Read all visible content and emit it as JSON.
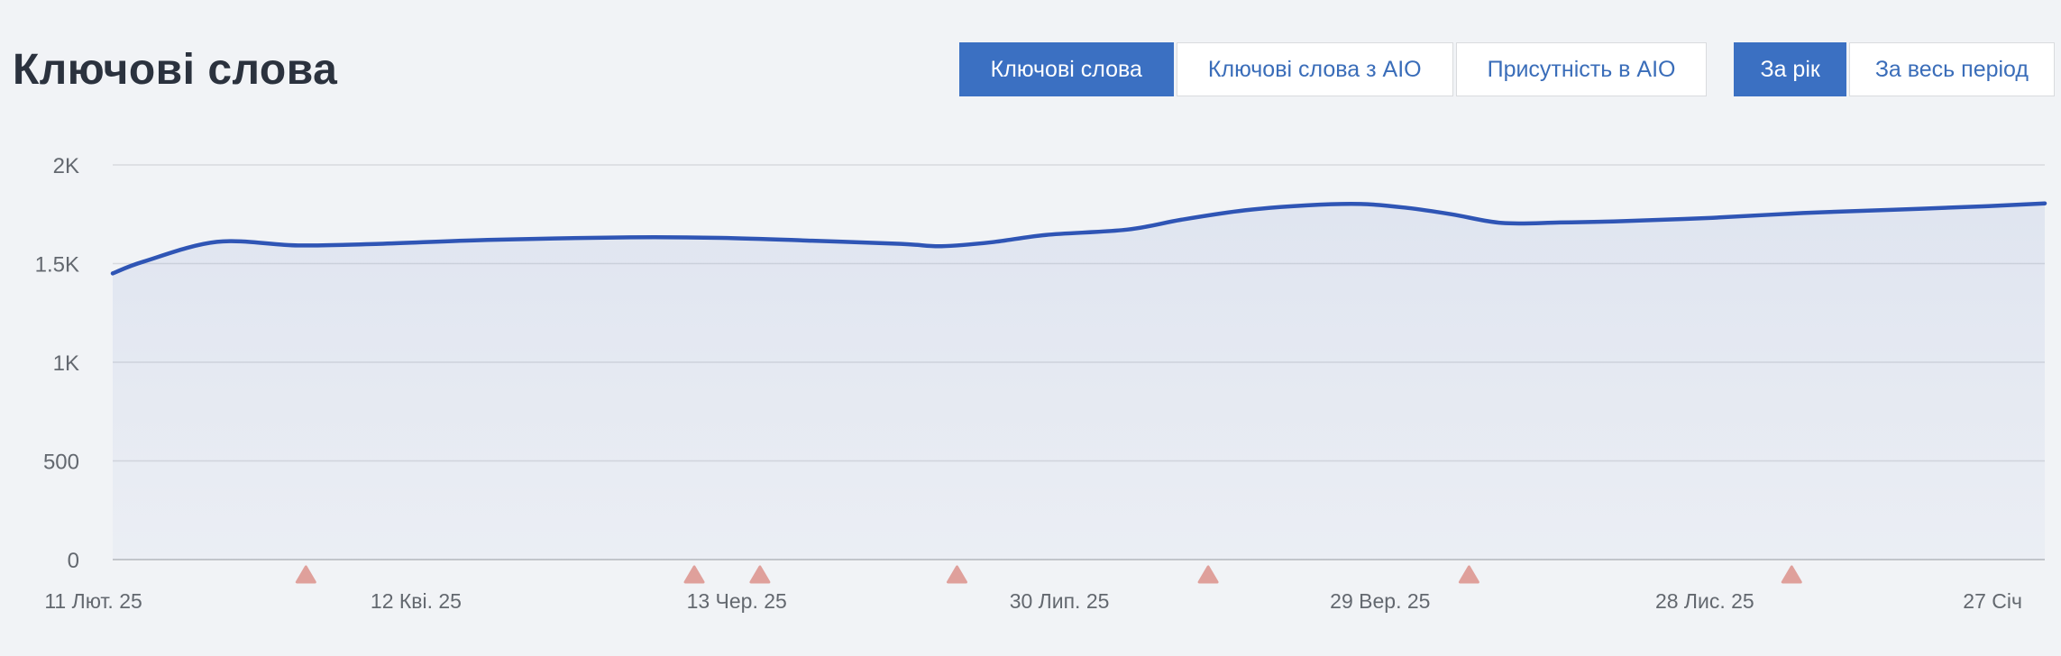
{
  "header": {
    "title": "Ключові слова",
    "tabs": [
      {
        "label": "Ключові слова",
        "active": true
      },
      {
        "label": "Ключові слова з AIO",
        "active": false
      },
      {
        "label": "Присутність в AIO",
        "active": false
      }
    ],
    "period_buttons": [
      {
        "label": "За рік",
        "active": true
      },
      {
        "label": "За весь період",
        "active": false
      }
    ]
  },
  "colors": {
    "page_background": "#f1f3f6",
    "accent_blue": "#3b70c2",
    "button_text_blue": "#3a6db9",
    "button_border": "#d9dbde",
    "line_blue": "#2f55b5",
    "area_fill_top": "rgba(47,85,181,0.09)",
    "area_fill_bottom": "rgba(47,85,181,0.03)",
    "grid_line": "#d8dade",
    "axis_line": "#c5c7cb",
    "axis_text": "#63686f",
    "event_marker": "#dfa09b"
  },
  "chart_data": {
    "type": "area",
    "title": "",
    "xlabel": "",
    "ylabel": "",
    "grid": true,
    "legend": false,
    "ylim": [
      0,
      2000
    ],
    "y_ticks": [
      {
        "value": 0,
        "label": "0"
      },
      {
        "value": 500,
        "label": "500"
      },
      {
        "value": 1000,
        "label": "1K"
      },
      {
        "value": 1500,
        "label": "1.5K"
      },
      {
        "value": 2000,
        "label": "2K"
      }
    ],
    "x_ticks": [
      {
        "pos": -0.01,
        "label": "11 Лют. 25"
      },
      {
        "pos": 0.157,
        "label": "12 Кві. 25"
      },
      {
        "pos": 0.323,
        "label": "13 Чер. 25"
      },
      {
        "pos": 0.49,
        "label": "30 Лип. 25"
      },
      {
        "pos": 0.656,
        "label": "29 Вер. 25"
      },
      {
        "pos": 0.824,
        "label": "28 Лис. 25"
      },
      {
        "pos": 0.973,
        "label": "27 Січ"
      }
    ],
    "series": [
      {
        "name": "Ключові слова",
        "points": [
          [
            0.0,
            1450
          ],
          [
            0.016,
            1510
          ],
          [
            0.054,
            1610
          ],
          [
            0.096,
            1592
          ],
          [
            0.138,
            1600
          ],
          [
            0.194,
            1620
          ],
          [
            0.268,
            1633
          ],
          [
            0.315,
            1630
          ],
          [
            0.362,
            1616
          ],
          [
            0.408,
            1600
          ],
          [
            0.429,
            1588
          ],
          [
            0.455,
            1608
          ],
          [
            0.483,
            1645
          ],
          [
            0.525,
            1672
          ],
          [
            0.553,
            1722
          ],
          [
            0.586,
            1770
          ],
          [
            0.618,
            1795
          ],
          [
            0.646,
            1802
          ],
          [
            0.67,
            1782
          ],
          [
            0.693,
            1750
          ],
          [
            0.719,
            1706
          ],
          [
            0.749,
            1708
          ],
          [
            0.782,
            1715
          ],
          [
            0.828,
            1732
          ],
          [
            0.875,
            1756
          ],
          [
            0.922,
            1773
          ],
          [
            0.968,
            1790
          ],
          [
            1.0,
            1805
          ]
        ]
      }
    ],
    "event_markers": {
      "shape": "triangle-up",
      "positions": [
        0.1,
        0.301,
        0.335,
        0.437,
        0.567,
        0.702,
        0.869
      ]
    }
  }
}
